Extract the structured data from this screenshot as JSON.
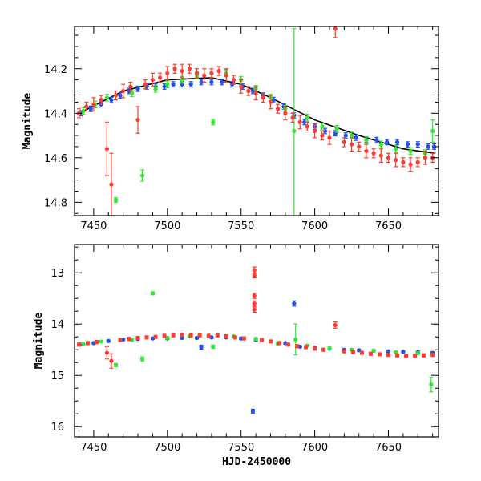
{
  "chart_data": [
    {
      "type": "scatter",
      "panel": "top",
      "ylabel": "Magnitude",
      "xlabel": "",
      "xlim": [
        7437,
        7684
      ],
      "ylim": [
        14.86,
        14.01
      ],
      "y_inverted": true,
      "x_ticks": [
        7450,
        7500,
        7550,
        7600,
        7650
      ],
      "x_tick_labels": [
        "7450",
        "7500",
        "7550",
        "7600",
        "7650"
      ],
      "y_ticks": [
        14.2,
        14.4,
        14.6,
        14.8
      ],
      "y_tick_labels": [
        "14.2",
        "14.4",
        "14.6",
        "14.8"
      ],
      "trend": {
        "color": "#000000",
        "x": [
          7440,
          7470,
          7500,
          7530,
          7550,
          7570,
          7600,
          7630,
          7660,
          7682
        ],
        "y": [
          14.4,
          14.3,
          14.25,
          14.24,
          14.27,
          14.33,
          14.43,
          14.5,
          14.56,
          14.58
        ]
      },
      "series": [
        {
          "color": "#1f4fe8",
          "x": [
            7441,
            7448,
            7455,
            7462,
            7468,
            7474,
            7480,
            7486,
            7492,
            7498,
            7504,
            7510,
            7516,
            7523,
            7530,
            7537,
            7544,
            7551,
            7558,
            7565,
            7572,
            7579,
            7586,
            7593,
            7600,
            7607,
            7614,
            7621,
            7628,
            7635,
            7642,
            7649,
            7656,
            7663,
            7670,
            7677,
            7681
          ],
          "y": [
            14.4,
            14.38,
            14.36,
            14.34,
            14.32,
            14.3,
            14.29,
            14.28,
            14.28,
            14.28,
            14.27,
            14.27,
            14.27,
            14.26,
            14.26,
            14.26,
            14.27,
            14.28,
            14.3,
            14.32,
            14.34,
            14.37,
            14.41,
            14.44,
            14.46,
            14.48,
            14.49,
            14.5,
            14.51,
            14.52,
            14.52,
            14.53,
            14.53,
            14.54,
            14.54,
            14.55,
            14.55
          ],
          "err": [
            0.012,
            0.012,
            0.012,
            0.012,
            0.012,
            0.012,
            0.012,
            0.012,
            0.012,
            0.012,
            0.012,
            0.012,
            0.012,
            0.012,
            0.012,
            0.012,
            0.012,
            0.012,
            0.012,
            0.012,
            0.012,
            0.012,
            0.012,
            0.012,
            0.012,
            0.012,
            0.012,
            0.012,
            0.012,
            0.012,
            0.012,
            0.012,
            0.012,
            0.012,
            0.012,
            0.012,
            0.012
          ]
        },
        {
          "color": "#2fe82f",
          "x": [
            7443,
            7451,
            7459,
            7465,
            7476,
            7483,
            7492,
            7500,
            7510,
            7520,
            7531,
            7540,
            7550,
            7560,
            7570,
            7580,
            7586,
            7595,
            7605,
            7615,
            7625,
            7635,
            7645,
            7655,
            7665,
            7675,
            7680
          ],
          "y": [
            14.39,
            14.36,
            14.33,
            14.79,
            14.31,
            14.68,
            14.29,
            14.27,
            14.25,
            14.23,
            14.44,
            14.22,
            14.25,
            14.29,
            14.33,
            14.38,
            14.48,
            14.42,
            14.46,
            14.47,
            14.5,
            14.52,
            14.54,
            14.56,
            14.57,
            14.58,
            14.48
          ],
          "err": [
            0.015,
            0.015,
            0.015,
            0.01,
            0.015,
            0.025,
            0.015,
            0.015,
            0.015,
            0.015,
            0.012,
            0.015,
            0.015,
            0.015,
            0.015,
            0.015,
            0.46,
            0.015,
            0.015,
            0.015,
            0.015,
            0.015,
            0.015,
            0.015,
            0.015,
            0.015,
            0.05
          ]
        },
        {
          "color": "#ff3b2f",
          "x": [
            7440,
            7445,
            7450,
            7455,
            7459,
            7462,
            7465,
            7470,
            7475,
            7480,
            7485,
            7490,
            7495,
            7500,
            7505,
            7510,
            7515,
            7520,
            7525,
            7530,
            7535,
            7540,
            7545,
            7550,
            7555,
            7560,
            7565,
            7570,
            7575,
            7580,
            7585,
            7590,
            7595,
            7600,
            7605,
            7610,
            7614,
            7620,
            7625,
            7630,
            7635,
            7640,
            7645,
            7650,
            7655,
            7660,
            7665,
            7670,
            7675,
            7680
          ],
          "y": [
            14.4,
            14.37,
            14.36,
            14.34,
            14.56,
            14.72,
            14.32,
            14.3,
            14.28,
            14.43,
            14.27,
            14.25,
            14.24,
            14.22,
            14.2,
            14.21,
            14.2,
            14.22,
            14.23,
            14.22,
            14.21,
            14.23,
            14.25,
            14.28,
            14.3,
            14.31,
            14.33,
            14.35,
            14.38,
            14.4,
            14.42,
            14.44,
            14.46,
            14.48,
            14.5,
            14.51,
            14.02,
            14.53,
            14.54,
            14.55,
            14.57,
            14.58,
            14.59,
            14.6,
            14.61,
            14.62,
            14.63,
            14.62,
            14.6,
            14.6
          ],
          "err": [
            0.02,
            0.02,
            0.03,
            0.02,
            0.12,
            0.14,
            0.02,
            0.03,
            0.02,
            0.06,
            0.02,
            0.03,
            0.02,
            0.03,
            0.02,
            0.03,
            0.02,
            0.02,
            0.03,
            0.02,
            0.02,
            0.03,
            0.02,
            0.03,
            0.02,
            0.03,
            0.02,
            0.03,
            0.02,
            0.03,
            0.02,
            0.03,
            0.02,
            0.03,
            0.02,
            0.03,
            0.04,
            0.02,
            0.03,
            0.02,
            0.03,
            0.02,
            0.03,
            0.02,
            0.03,
            0.02,
            0.03,
            0.02,
            0.03,
            0.02
          ]
        }
      ]
    },
    {
      "type": "scatter",
      "panel": "bottom",
      "ylabel": "Magnitude",
      "xlabel": "HJD-2450000",
      "xlim": [
        7437,
        7684
      ],
      "ylim": [
        16.2,
        12.45
      ],
      "y_inverted": true,
      "x_ticks": [
        7450,
        7500,
        7550,
        7600,
        7650
      ],
      "x_tick_labels": [
        "7450",
        "7500",
        "7550",
        "7600",
        "7650"
      ],
      "y_ticks": [
        13,
        14,
        15,
        16
      ],
      "y_tick_labels": [
        "13",
        "14",
        "15",
        "16"
      ],
      "series": [
        {
          "color": "#1f4fe8",
          "x": [
            7441,
            7450,
            7460,
            7470,
            7480,
            7490,
            7500,
            7510,
            7520,
            7523,
            7530,
            7540,
            7550,
            7558,
            7560,
            7570,
            7580,
            7586,
            7590,
            7600,
            7610,
            7620,
            7630,
            7640,
            7650,
            7660,
            7670,
            7680
          ],
          "y": [
            14.4,
            14.37,
            14.33,
            14.3,
            14.29,
            14.28,
            14.28,
            14.27,
            14.27,
            14.45,
            14.26,
            14.26,
            14.28,
            15.7,
            14.31,
            14.34,
            14.37,
            13.6,
            14.44,
            14.46,
            14.48,
            14.5,
            14.51,
            14.52,
            14.53,
            14.54,
            14.55,
            14.56
          ],
          "err": [
            0.02,
            0.02,
            0.02,
            0.02,
            0.02,
            0.02,
            0.02,
            0.02,
            0.02,
            0.04,
            0.02,
            0.02,
            0.02,
            0.04,
            0.02,
            0.02,
            0.02,
            0.05,
            0.02,
            0.02,
            0.02,
            0.02,
            0.02,
            0.02,
            0.02,
            0.02,
            0.02,
            0.02
          ]
        },
        {
          "color": "#2fe82f",
          "x": [
            7443,
            7455,
            7465,
            7476,
            7483,
            7490,
            7500,
            7515,
            7531,
            7545,
            7560,
            7575,
            7587,
            7595,
            7610,
            7625,
            7640,
            7655,
            7670,
            7679
          ],
          "y": [
            14.39,
            14.34,
            14.8,
            14.31,
            14.68,
            13.4,
            14.27,
            14.24,
            14.44,
            14.24,
            14.29,
            14.38,
            14.3,
            14.42,
            14.47,
            14.5,
            14.52,
            14.55,
            14.57,
            15.18
          ],
          "err": [
            0.02,
            0.02,
            0.03,
            0.02,
            0.04,
            0.03,
            0.02,
            0.02,
            0.03,
            0.02,
            0.02,
            0.02,
            0.3,
            0.02,
            0.02,
            0.02,
            0.02,
            0.02,
            0.02,
            0.14
          ]
        },
        {
          "color": "#ff3b2f",
          "x": [
            7440,
            7446,
            7452,
            7459,
            7462,
            7468,
            7474,
            7480,
            7486,
            7492,
            7498,
            7504,
            7510,
            7516,
            7522,
            7528,
            7534,
            7540,
            7546,
            7552,
            7559,
            7559,
            7559,
            7559,
            7559,
            7564,
            7570,
            7576,
            7582,
            7588,
            7594,
            7600,
            7606,
            7614,
            7620,
            7626,
            7632,
            7638,
            7644,
            7650,
            7656,
            7662,
            7668,
            7674,
            7680
          ],
          "y": [
            14.4,
            14.37,
            14.35,
            14.56,
            14.72,
            14.31,
            14.29,
            14.27,
            14.26,
            14.25,
            14.23,
            14.22,
            14.21,
            14.22,
            14.22,
            14.23,
            14.22,
            14.24,
            14.26,
            14.28,
            12.95,
            13.05,
            13.45,
            13.6,
            13.72,
            14.31,
            14.34,
            14.37,
            14.4,
            14.43,
            14.45,
            14.48,
            14.5,
            14.02,
            14.53,
            14.55,
            14.56,
            14.58,
            14.59,
            14.6,
            14.61,
            14.62,
            14.62,
            14.61,
            14.6
          ],
          "err": [
            0.03,
            0.03,
            0.03,
            0.12,
            0.14,
            0.03,
            0.03,
            0.03,
            0.03,
            0.03,
            0.03,
            0.03,
            0.03,
            0.03,
            0.03,
            0.03,
            0.03,
            0.03,
            0.03,
            0.03,
            0.06,
            0.05,
            0.05,
            0.05,
            0.05,
            0.03,
            0.03,
            0.03,
            0.03,
            0.03,
            0.03,
            0.03,
            0.03,
            0.06,
            0.03,
            0.03,
            0.03,
            0.03,
            0.03,
            0.03,
            0.03,
            0.03,
            0.03,
            0.03,
            0.03
          ]
        }
      ]
    }
  ]
}
